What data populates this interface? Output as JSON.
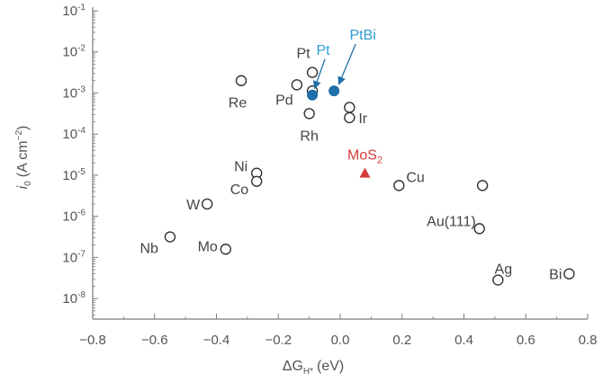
{
  "chart_data": {
    "type": "scatter",
    "xlabel": "ΔG",
    "xlabel_sub": "H*",
    "xlabel_unit": "(eV)",
    "ylabel": "i",
    "ylabel_sub": "0",
    "ylabel_unit": "(A cm",
    "ylabel_sup": "−2",
    "ylabel_close": ")",
    "xlim": [
      -0.8,
      0.8
    ],
    "ylim": [
      -8.5,
      -1
    ],
    "y_scale": "log",
    "grid": false,
    "x_ticks": [
      "−0.8",
      "−0.6",
      "−0.4",
      "−0.2",
      "0.0",
      "0.2",
      "0.4",
      "0.6",
      "0.8"
    ],
    "x_tick_values": [
      -0.8,
      -0.6,
      -0.4,
      -0.2,
      0.0,
      0.2,
      0.4,
      0.6,
      0.8
    ],
    "y_ticks": [
      {
        "base": "10",
        "exp": "-1",
        "value": -1
      },
      {
        "base": "10",
        "exp": "-2",
        "value": -2
      },
      {
        "base": "10",
        "exp": "-3",
        "value": -3
      },
      {
        "base": "10",
        "exp": "-4",
        "value": -4
      },
      {
        "base": "10",
        "exp": "-5",
        "value": -5
      },
      {
        "base": "10",
        "exp": "-6",
        "value": -6
      },
      {
        "base": "10",
        "exp": "-7",
        "value": -7
      },
      {
        "base": "10",
        "exp": "-8",
        "value": -8
      }
    ],
    "colors": {
      "axis": "#7a7a7a",
      "marker": "#333333",
      "text": "#444444",
      "highlight_blue": "#1f6fa8",
      "highlight_blue_text": "#2e9bd6",
      "mos2": "#d43a3a"
    },
    "series": [
      {
        "marker": "open-circle",
        "points": [
          {
            "label": "Pt",
            "x": -0.09,
            "y": -2.5
          },
          {
            "label": "Re",
            "x": -0.32,
            "y": -2.7
          },
          {
            "label": "Pd",
            "x": -0.14,
            "y": -2.8
          },
          {
            "label": "",
            "x": -0.09,
            "y": -2.95
          },
          {
            "label": "Rh",
            "x": -0.1,
            "y": -3.5
          },
          {
            "label": "",
            "x": 0.03,
            "y": -3.35
          },
          {
            "label": "Ir",
            "x": 0.03,
            "y": -3.6
          },
          {
            "label": "Ni",
            "x": -0.27,
            "y": -4.95
          },
          {
            "label": "Co",
            "x": -0.27,
            "y": -5.15
          },
          {
            "label": "W",
            "x": -0.43,
            "y": -5.7
          },
          {
            "label": "Nb",
            "x": -0.55,
            "y": -6.5
          },
          {
            "label": "Mo",
            "x": -0.37,
            "y": -6.8
          },
          {
            "label": "Cu",
            "x": 0.19,
            "y": -5.25
          },
          {
            "label": "",
            "x": 0.46,
            "y": -5.25
          },
          {
            "label": "Au(111)",
            "x": 0.45,
            "y": -6.3
          },
          {
            "label": "Ag",
            "x": 0.51,
            "y": -7.55
          },
          {
            "label": "Bi",
            "x": 0.74,
            "y": -7.4
          }
        ]
      },
      {
        "marker": "filled-circle",
        "color": "#1f6fa8",
        "points": [
          {
            "label": "Pt",
            "x": -0.09,
            "y": -3.05
          },
          {
            "label": "PtBi",
            "x": -0.02,
            "y": -2.95
          }
        ]
      },
      {
        "marker": "filled-triangle",
        "color": "#d43a3a",
        "points": [
          {
            "label": "MoS",
            "label_sub": "2",
            "x": 0.08,
            "y": -4.95
          }
        ]
      }
    ]
  }
}
